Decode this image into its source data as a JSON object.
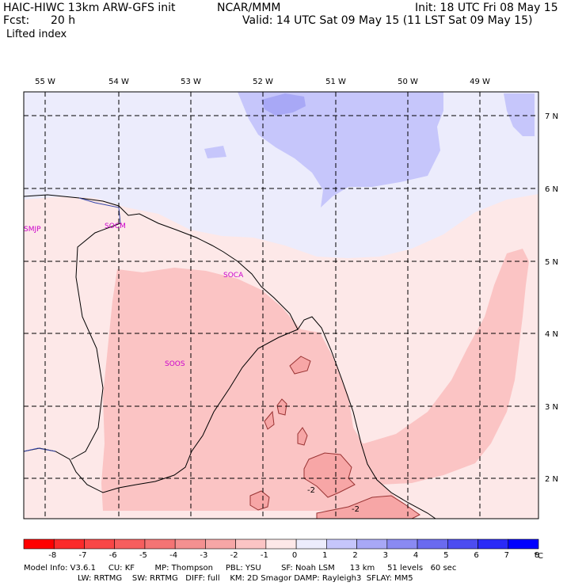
{
  "header": {
    "model": "HAIC-HIWC 13km ARW-GFS init",
    "org": "NCAR/MMM",
    "init": "Init: 18 UTC Fri 08 May 15",
    "fcst_label": "Fcst:",
    "fcst_value": "20 h",
    "valid": "Valid: 14 UTC Sat 09 May 15 (11 LST Sat 09 May 15)",
    "field": "Lifted index"
  },
  "map": {
    "lon_labels": [
      "55 W",
      "54 W",
      "53 W",
      "52 W",
      "51 W",
      "50 W",
      "49 W"
    ],
    "lat_labels": [
      "7 N",
      "6 N",
      "5 N",
      "4 N",
      "3 N",
      "2 N"
    ],
    "stations": [
      "SMJP",
      "SOCM",
      "SOCA",
      "SOOS"
    ],
    "contour_labels": [
      "-2",
      "-2"
    ],
    "colors": {
      "blue_light": "#ececfc",
      "blue_mid": "#c6c6fb",
      "blue_strong": "#a8a8f6",
      "pink_light": "#fde8e8",
      "pink_mid": "#fbc4c4",
      "pink_strong": "#f7a6a6",
      "station": "#cc00cc"
    }
  },
  "colorbar": {
    "ticks": [
      "-8",
      "-7",
      "-6",
      "-5",
      "-4",
      "-3",
      "-2",
      "-1",
      "0",
      "1",
      "2",
      "3",
      "4",
      "5",
      "6",
      "7",
      "8"
    ],
    "unit": "°C",
    "colors": [
      "#ff0000",
      "#fb2a2a",
      "#f94646",
      "#f65e5e",
      "#f47474",
      "#f49090",
      "#f6a6a6",
      "#fbc4c4",
      "#fde8e8",
      "#ececfc",
      "#c6c6fb",
      "#a8a8f6",
      "#8a8af2",
      "#6a6aef",
      "#4c4cf0",
      "#2a2af7",
      "#0000ff"
    ]
  },
  "footer": {
    "line1": "Model Info: V3.6.1     CU: KF        MP: Thompson     PBL: YSU        SF: Noah LSM      13 km     51 levels   60 sec",
    "line2": "LW: RRTMG    SW: RRTMG   DIFF: full    KM: 2D Smagor DAMP: Rayleigh3  SFLAY: MM5"
  }
}
